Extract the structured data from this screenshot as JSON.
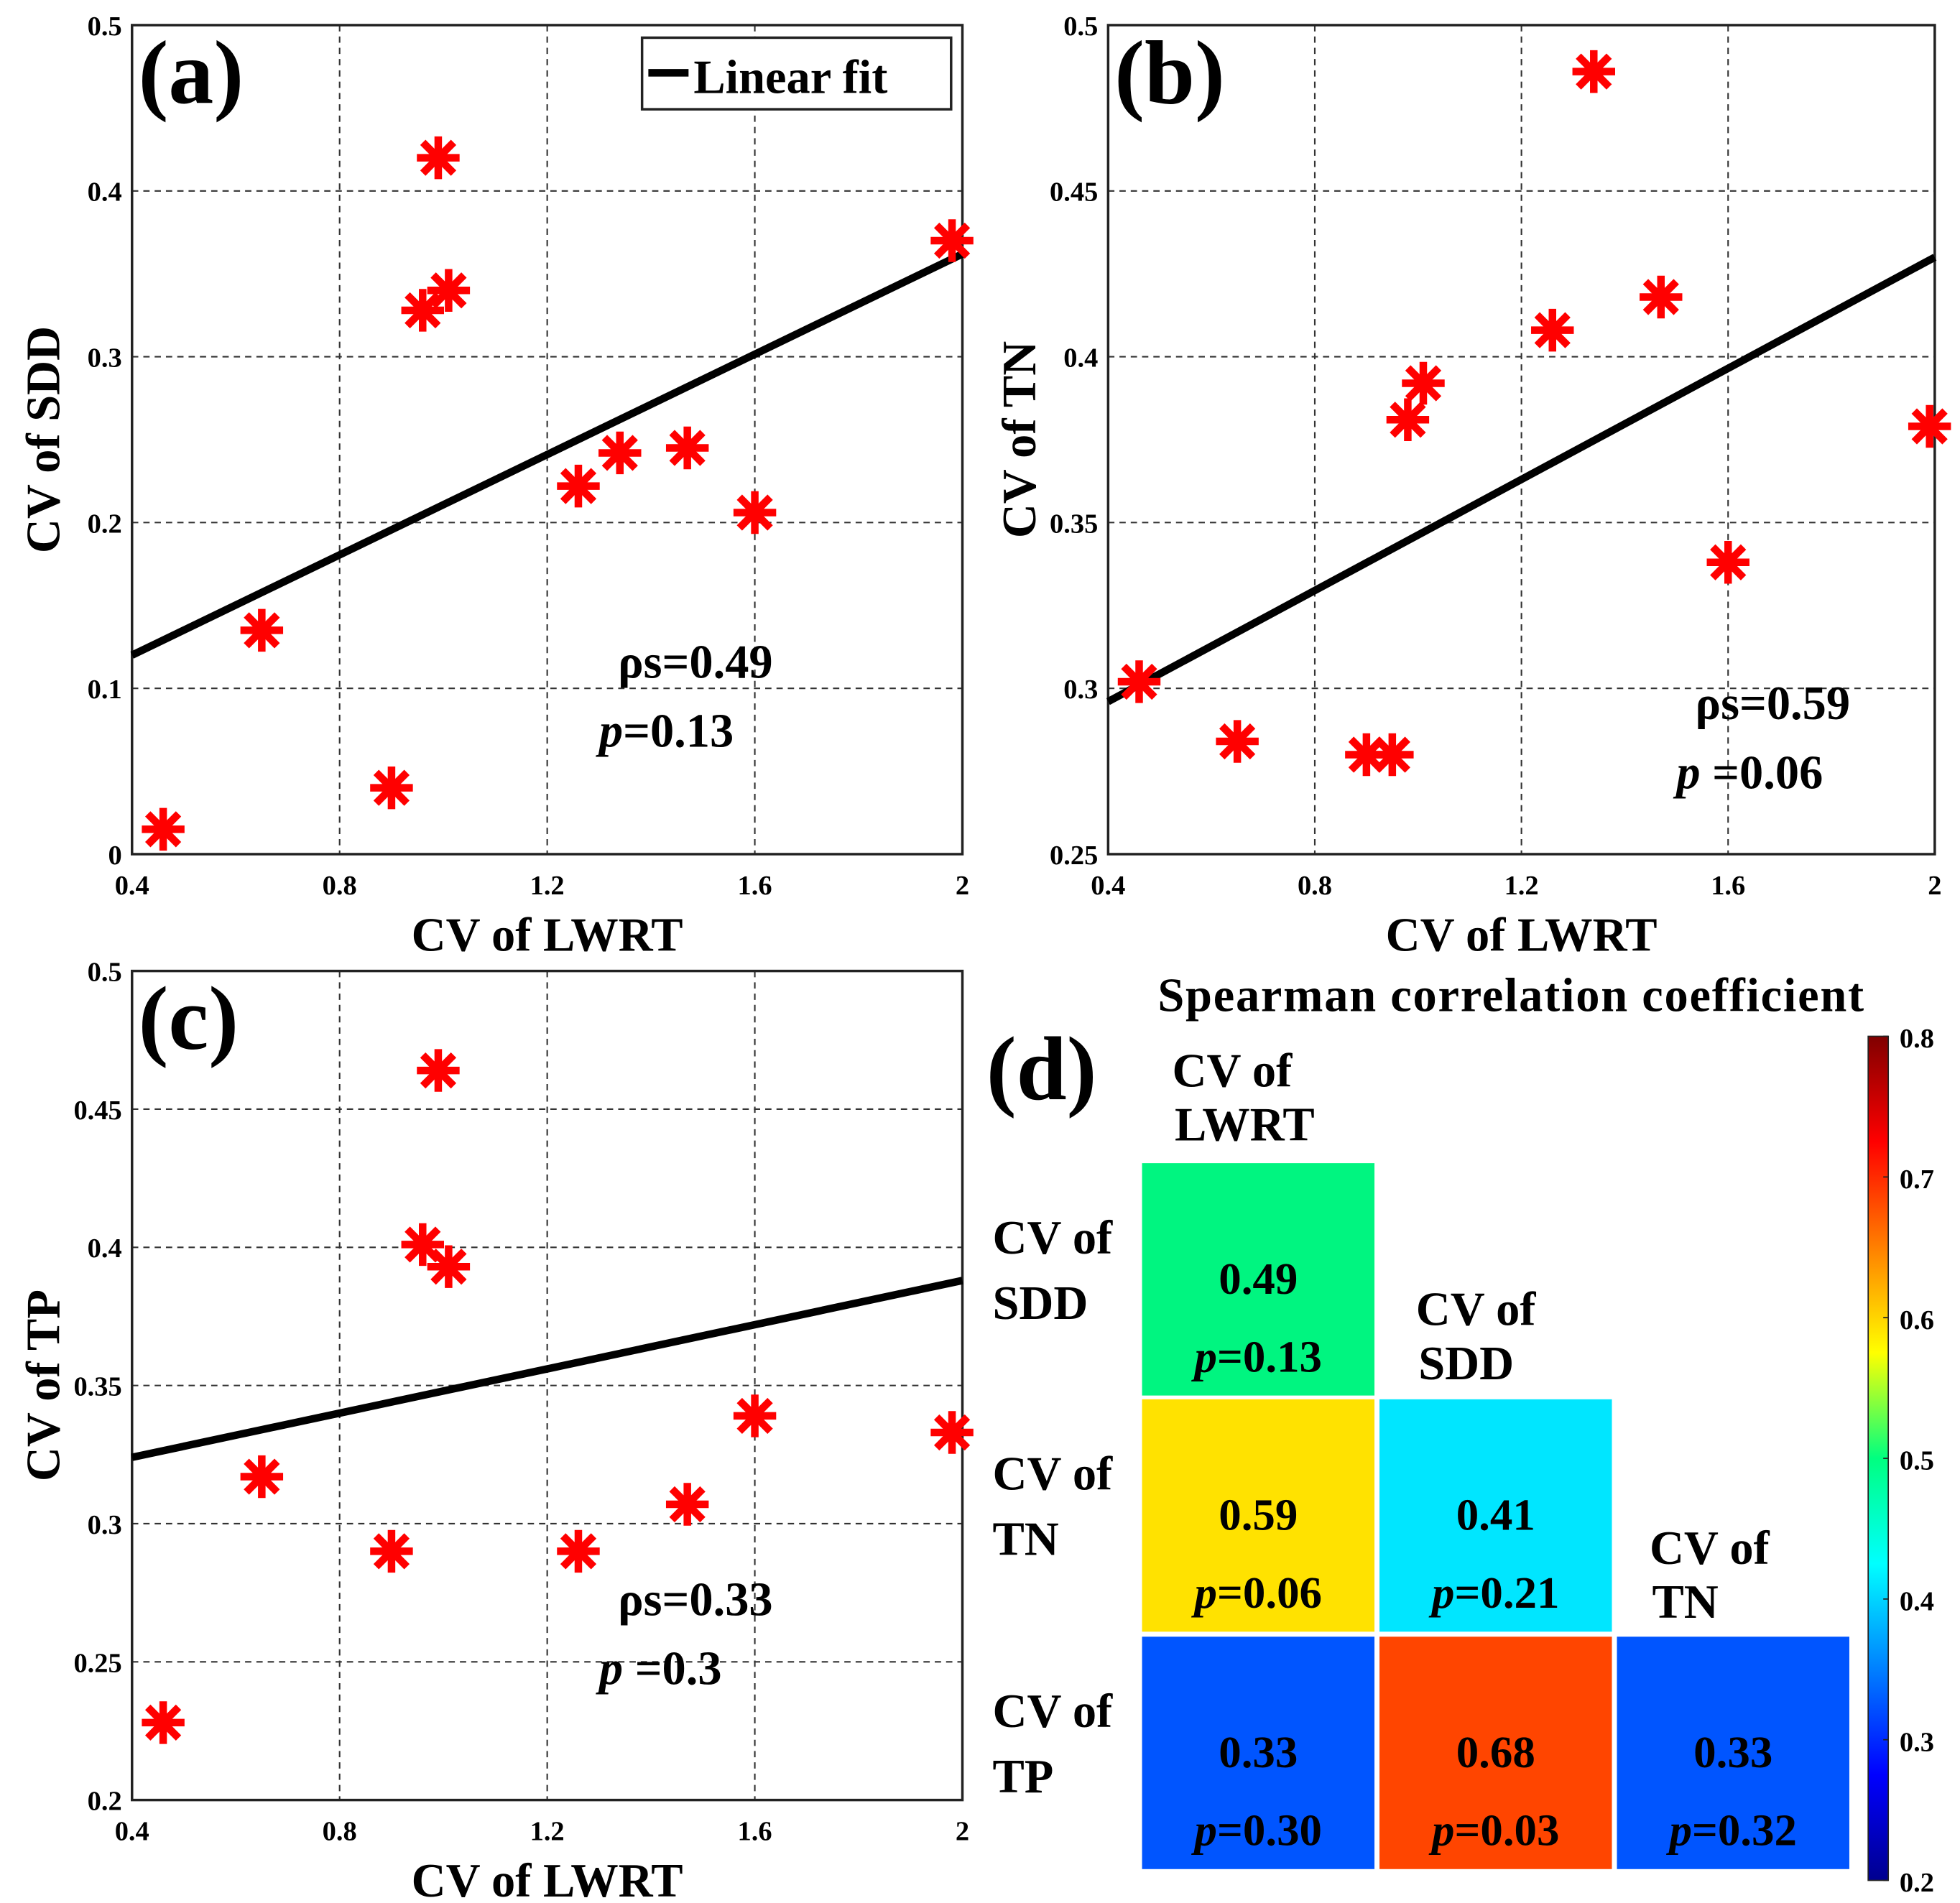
{
  "chart_data": [
    {
      "type": "scatter",
      "panel": "(a)",
      "xlabel": "CV of LWRT",
      "ylabel": "CV of SDD",
      "xlim": [
        0.4,
        2
      ],
      "ylim": [
        0,
        0.5
      ],
      "xticks": [
        "0.4",
        "0.8",
        "1.2",
        "1.6",
        "2"
      ],
      "yticks": [
        "0",
        "0.1",
        "0.2",
        "0.3",
        "0.4",
        "0.5"
      ],
      "grid": true,
      "legend": {
        "label": "Linear fit",
        "position": "top-right"
      },
      "x": [
        0.46,
        0.65,
        0.9,
        0.96,
        0.99,
        1.01,
        1.26,
        1.34,
        1.47,
        1.6,
        1.98
      ],
      "y": [
        0.015,
        0.135,
        0.04,
        0.328,
        0.42,
        0.34,
        0.222,
        0.242,
        0.245,
        0.206,
        0.37
      ],
      "fit": {
        "x": [
          0.4,
          2
        ],
        "y": [
          0.12,
          0.362
        ]
      },
      "annotation": {
        "rho": "ρs=0.49",
        "p_italic": "p",
        "p_rest": "=0.13",
        "at": [
          1.3,
          0.095
        ]
      }
    },
    {
      "type": "scatter",
      "panel": "(b)",
      "xlabel": "CV of LWRT",
      "ylabel": "CV of TN",
      "xlim": [
        0.4,
        2
      ],
      "ylim": [
        0.25,
        0.5
      ],
      "xticks": [
        "0.4",
        "0.8",
        "1.2",
        "1.6",
        "2"
      ],
      "yticks": [
        "0.25",
        "0.3",
        "0.35",
        "0.4",
        "0.45",
        "0.5"
      ],
      "grid": true,
      "x": [
        0.46,
        0.65,
        0.9,
        0.95,
        0.98,
        1.01,
        1.26,
        1.34,
        1.47,
        1.6,
        1.99
      ],
      "y": [
        0.302,
        0.284,
        0.28,
        0.28,
        0.381,
        0.392,
        0.408,
        0.486,
        0.418,
        0.338,
        0.379
      ],
      "fit": {
        "x": [
          0.4,
          2
        ],
        "y": [
          0.296,
          0.43
        ]
      },
      "annotation": {
        "rho": "ρs=0.59",
        "p_italic": "p",
        "p_rest": " =0.06",
        "at": [
          1.5,
          0.285
        ]
      }
    },
    {
      "type": "scatter",
      "panel": "(c)",
      "xlabel": "CV of LWRT",
      "ylabel": "CV of TP",
      "xlim": [
        0.4,
        2
      ],
      "ylim": [
        0.2,
        0.5
      ],
      "xticks": [
        "0.4",
        "0.8",
        "1.2",
        "1.6",
        "2"
      ],
      "yticks": [
        "0.2",
        "0.25",
        "0.3",
        "0.35",
        "0.4",
        "0.45",
        "0.5"
      ],
      "grid": true,
      "x": [
        0.46,
        0.65,
        0.9,
        0.96,
        0.99,
        1.01,
        1.26,
        1.47,
        1.6,
        1.98
      ],
      "y": [
        0.228,
        0.317,
        0.29,
        0.401,
        0.464,
        0.393,
        0.29,
        0.307,
        0.339,
        0.333
      ],
      "fit": {
        "x": [
          0.4,
          2
        ],
        "y": [
          0.324,
          0.388
        ]
      },
      "annotation": {
        "rho": "ρs=0.33",
        "p_italic": "p",
        "p_rest": " =0.3",
        "at": [
          1.3,
          0.26
        ]
      }
    },
    {
      "type": "heatmap",
      "panel": "(d)",
      "title": "Spearman correlation coefficient",
      "col_labels": [
        [
          "CV of",
          "LWRT"
        ],
        [
          "CV of",
          "SDD"
        ],
        [
          "CV of",
          "TN"
        ]
      ],
      "row_labels": [
        [
          "CV of",
          "SDD"
        ],
        [
          "CV of",
          "TN"
        ],
        [
          "CV of",
          "TP"
        ]
      ],
      "cells": [
        {
          "row": 0,
          "col": 0,
          "value": "0.49",
          "p": "=0.13",
          "color": "#00F580"
        },
        {
          "row": 1,
          "col": 0,
          "value": "0.59",
          "p": "=0.06",
          "color": "#FFE200"
        },
        {
          "row": 1,
          "col": 1,
          "value": "0.41",
          "p": "=0.21",
          "color": "#00E6FF"
        },
        {
          "row": 2,
          "col": 0,
          "value": "0.33",
          "p": "=0.30",
          "color": "#0055FF"
        },
        {
          "row": 2,
          "col": 1,
          "value": "0.68",
          "p": "=0.03",
          "color": "#FF4500"
        },
        {
          "row": 2,
          "col": 2,
          "value": "0.33",
          "p": "=0.32",
          "color": "#0055FF"
        }
      ],
      "p_italic": "p",
      "colorbar": {
        "range": [
          0.2,
          0.8
        ],
        "ticks": [
          "0.2",
          "0.3",
          "0.4",
          "0.5",
          "0.6",
          "0.7",
          "0.8"
        ],
        "colormap": "jet"
      }
    }
  ],
  "colors": {
    "marker": "#FF0000",
    "fit": "#000000"
  }
}
